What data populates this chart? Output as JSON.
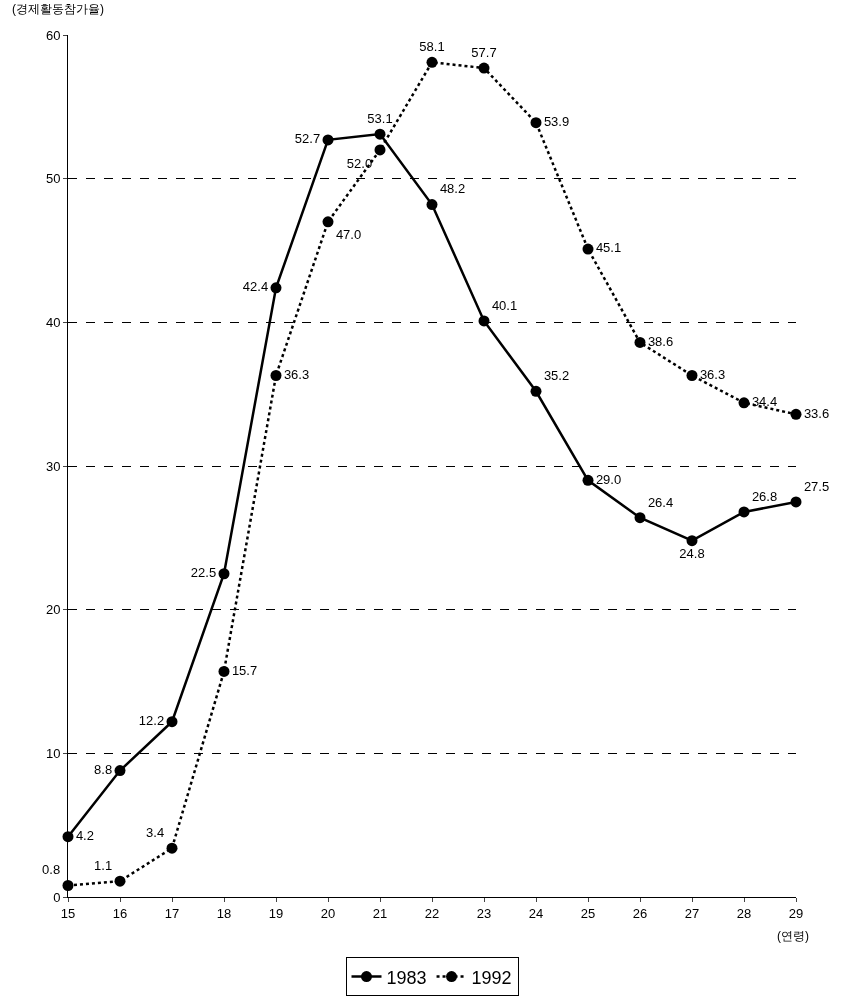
{
  "chart_data": {
    "type": "line",
    "ylabel": "(경제활동참가율)",
    "xlabel": "(연령)",
    "x": [
      15,
      16,
      17,
      18,
      19,
      20,
      21,
      22,
      23,
      24,
      25,
      26,
      27,
      28,
      29
    ],
    "xlim": [
      15,
      29
    ],
    "xticks": [
      15,
      16,
      17,
      18,
      19,
      20,
      21,
      22,
      23,
      24,
      25,
      26,
      27,
      28,
      29
    ],
    "ylim": [
      0,
      60
    ],
    "yticks": [
      0,
      10,
      20,
      30,
      40,
      50,
      60
    ],
    "series": [
      {
        "name": "1983",
        "color": "#000000",
        "line_style": "solid",
        "values": [
          4.2,
          8.8,
          12.2,
          22.5,
          42.4,
          52.7,
          53.1,
          48.2,
          40.1,
          35.2,
          29.0,
          26.4,
          24.8,
          26.8,
          27.5
        ],
        "value_labels": [
          "4.2",
          "8.8",
          "12.2",
          "22.5",
          "42.4",
          "52.7",
          "53.1",
          "48.2",
          "40.1",
          "35.2",
          "29.0",
          "26.4",
          "24.8",
          "26.8",
          "27.5"
        ]
      },
      {
        "name": "1992",
        "color": "#000000",
        "line_style": "dotted",
        "values": [
          0.8,
          1.1,
          3.4,
          15.7,
          36.3,
          47.0,
          52.0,
          58.1,
          57.7,
          53.9,
          45.1,
          38.6,
          36.3,
          34.4,
          33.6
        ],
        "value_labels": [
          "0.8",
          "1.1",
          "3.4",
          "15.7",
          "36.3",
          "47.0",
          "52.0",
          "58.1",
          "57.7",
          "53.9",
          "45.1",
          "38.6",
          "36.3",
          "34.4",
          "33.6"
        ]
      }
    ],
    "marker": "circle",
    "grid": "y",
    "legend": "bottom"
  }
}
